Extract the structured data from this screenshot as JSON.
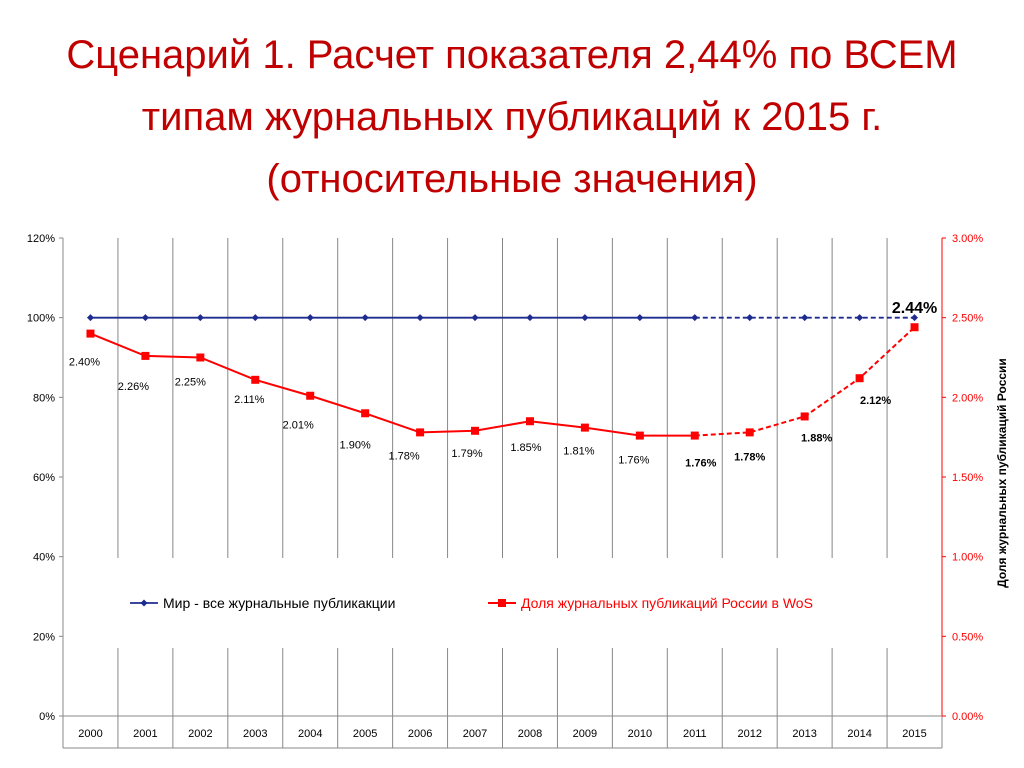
{
  "slide": {
    "title": "Сценарий 1. Расчет показателя 2,44% по ВСЕМ типам журнальных публикаций к 2015 г. (относительные значения)"
  },
  "colors": {
    "world": "#1f2c8f",
    "russia": "#ff0000",
    "grid": "#888888",
    "title": "#c00000"
  },
  "chart_data": {
    "type": "line",
    "categories": [
      "2000",
      "2001",
      "2002",
      "2003",
      "2004",
      "2005",
      "2006",
      "2007",
      "2008",
      "2009",
      "2010",
      "2011",
      "2012",
      "2013",
      "2014",
      "2015"
    ],
    "y_left": {
      "ticks": [
        "0%",
        "20%",
        "40%",
        "60%",
        "80%",
        "100%",
        "120%"
      ],
      "ylim": [
        0,
        120
      ]
    },
    "y_right": {
      "label": "Доля журнальных публикаций России",
      "ticks": [
        "0.00%",
        "0.50%",
        "1.00%",
        "1.50%",
        "2.00%",
        "2.50%",
        "3.00%"
      ],
      "ylim": [
        0,
        3.0
      ]
    },
    "series": [
      {
        "name": "Мир - все журнальные публикакции",
        "axis": "left",
        "marker": "diamond",
        "values": [
          100,
          100,
          100,
          100,
          100,
          100,
          100,
          100,
          100,
          100,
          100,
          100,
          100,
          100,
          100,
          100
        ],
        "projected_from_index": 11
      },
      {
        "name": "Доля журнальных публикаций России в WoS",
        "axis": "right",
        "marker": "square",
        "values": [
          2.4,
          2.26,
          2.25,
          2.11,
          2.01,
          1.9,
          1.78,
          1.79,
          1.85,
          1.81,
          1.76,
          1.76,
          1.78,
          1.88,
          2.12,
          2.44
        ],
        "labels": [
          "2.40%",
          "2.26%",
          "2.25%",
          "2.11%",
          "2.01%",
          "1.90%",
          "1.78%",
          "1.79%",
          "1.85%",
          "1.81%",
          "1.76%",
          "1.76%",
          "1.78%",
          "1.88%",
          "2.12%",
          "2.44%"
        ],
        "projected_from_index": 11
      }
    ],
    "grid": {
      "vertical": true,
      "horizontal": false
    },
    "legend_position": "middle"
  }
}
